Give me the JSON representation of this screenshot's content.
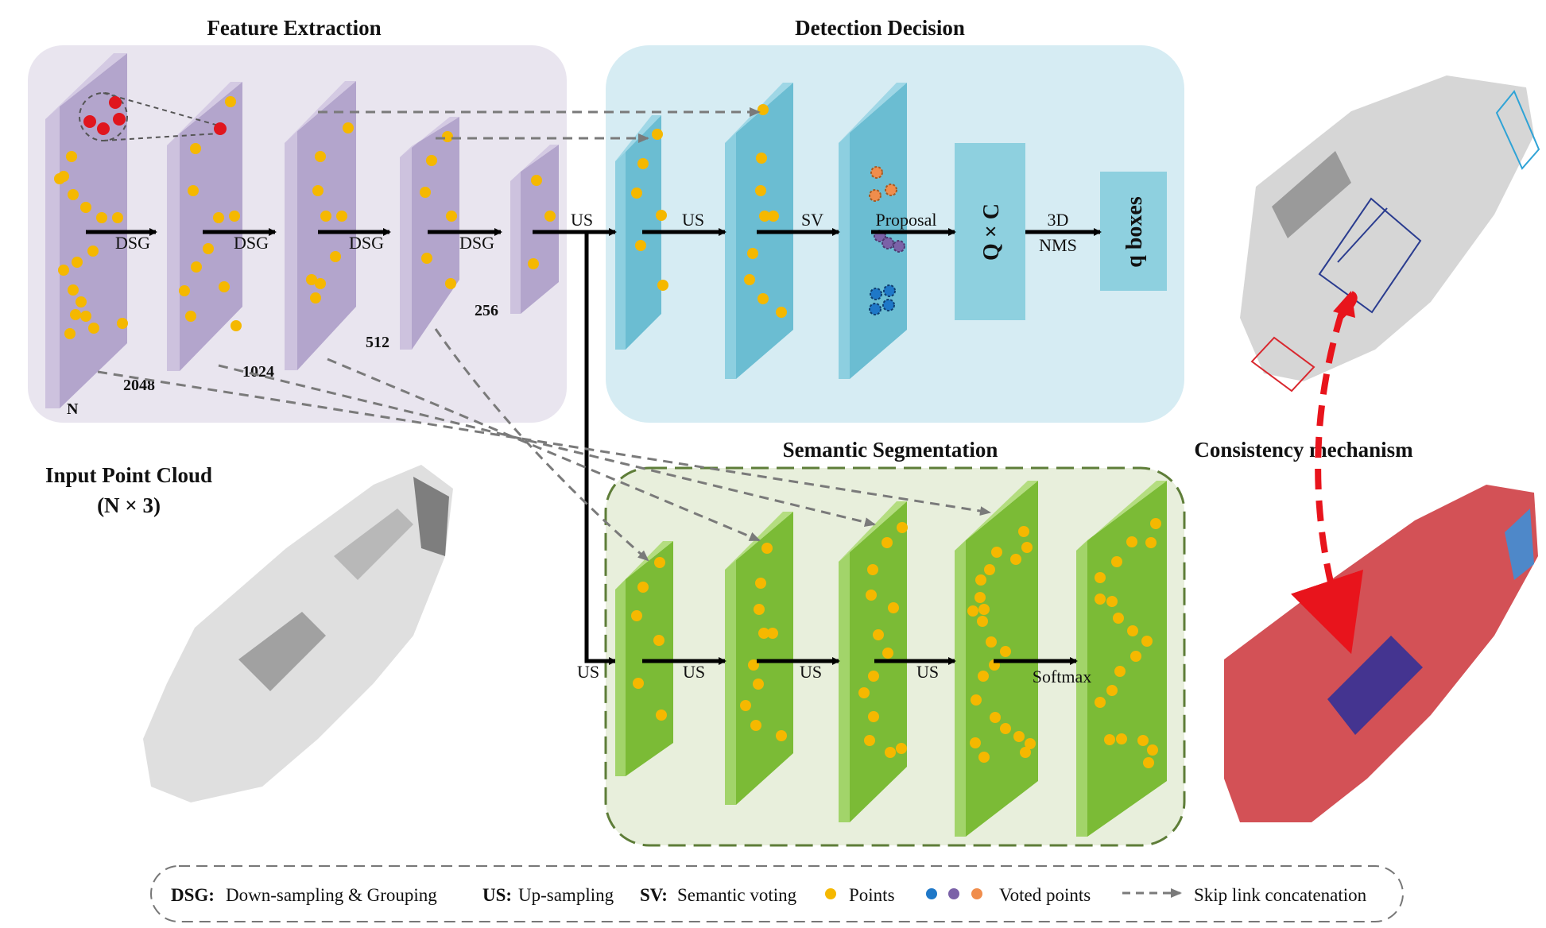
{
  "sections": {
    "feature_extraction": "Feature Extraction",
    "detection_decision": "Detection Decision",
    "semantic_segmentation": "Semantic Segmentation",
    "consistency": "Consistency mechanism",
    "input_title": "Input Point Cloud",
    "input_shape": "(N × 3)"
  },
  "feature_extraction": {
    "sizes": [
      "N",
      "2048",
      "1024",
      "512",
      "256"
    ],
    "ops": [
      "DSG",
      "DSG",
      "DSG",
      "DSG"
    ]
  },
  "detection": {
    "ops": [
      "US",
      "US",
      "SV",
      "Proposal"
    ],
    "qc": "Q × C",
    "nms_top": "3D",
    "nms_bottom": "NMS",
    "boxes": "q boxes"
  },
  "segmentation": {
    "ops": [
      "US",
      "US",
      "US",
      "US",
      "Softmax"
    ]
  },
  "legend": {
    "dsg_key": "DSG:",
    "dsg_text": "Down-sampling & Grouping",
    "us_key": "US:",
    "us_text": "Up-sampling",
    "sv_key": "SV:",
    "sv_text": "Semantic voting",
    "points": "Points",
    "voted": "Voted points",
    "skip": "Skip link concatenation"
  },
  "colors": {
    "feature_bg": "#e9e5ef",
    "feature_plane": "#b3a5cc",
    "detection_bg": "#d6ecf3",
    "detection_plane": "#6bbdd2",
    "segmentation_bg": "#e8efdc",
    "segmentation_plane": "#7bbb36",
    "point": "#f5b800",
    "seed_point": "#e0161e",
    "voted_blue": "#1f78c8",
    "voted_purple": "#7b62a8",
    "voted_orange": "#f08d4c",
    "consistency_arrow": "#e8141c"
  }
}
